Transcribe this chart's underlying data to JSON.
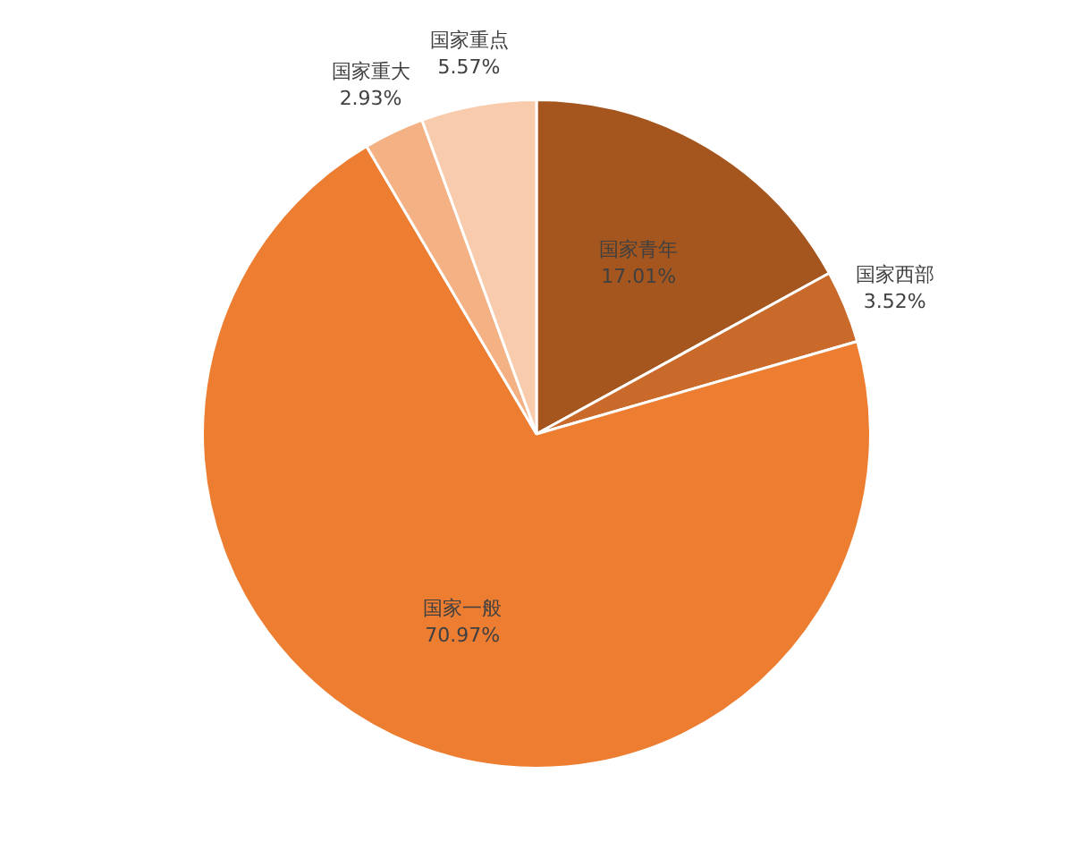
{
  "chart_data": {
    "type": "pie",
    "categories": [
      "国家青年",
      "国家西部",
      "国家一般",
      "国家重大",
      "国家重点"
    ],
    "values": [
      17.01,
      3.52,
      70.97,
      2.93,
      5.57
    ],
    "colors": [
      "#a5561f",
      "#c96a2a",
      "#ed7d31",
      "#f4b183",
      "#f8cbad"
    ],
    "value_labels": [
      "17.01%",
      "3.52%",
      "70.97%",
      "2.93%",
      "5.57%"
    ]
  }
}
